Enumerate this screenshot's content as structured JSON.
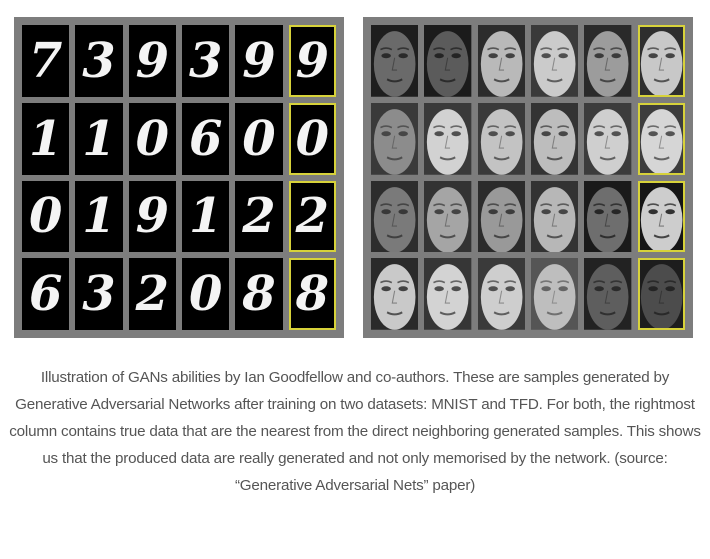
{
  "mnist_digits": [
    [
      "7",
      "3",
      "9",
      "3",
      "9",
      "9"
    ],
    [
      "1",
      "1",
      "0",
      "6",
      "0",
      "0"
    ],
    [
      "0",
      "1",
      "9",
      "1",
      "2",
      "2"
    ],
    [
      "6",
      "3",
      "2",
      "0",
      "8",
      "8"
    ]
  ],
  "tfd_faces": [
    [
      {
        "skin": "#6a6a6a",
        "dark": "#1e1e1e"
      },
      {
        "skin": "#5b5b5b",
        "dark": "#1b1b1b"
      },
      {
        "skin": "#b9b9b9",
        "dark": "#2c2c2c"
      },
      {
        "skin": "#cbcbcb",
        "dark": "#3a3a3a"
      },
      {
        "skin": "#9c9c9c",
        "dark": "#2a2a2a"
      },
      {
        "skin": "#c8c8c8",
        "dark": "#2e2e2e"
      }
    ],
    [
      {
        "skin": "#8c8c8c",
        "dark": "#3a3a3a"
      },
      {
        "skin": "#d2d2d2",
        "dark": "#3a3a3a"
      },
      {
        "skin": "#c3c3c3",
        "dark": "#3a3a3a"
      },
      {
        "skin": "#bdbdbd",
        "dark": "#333"
      },
      {
        "skin": "#cfcfcf",
        "dark": "#3c3c3c"
      },
      {
        "skin": "#d6d6d6",
        "dark": "#3d3d3d"
      }
    ],
    [
      {
        "skin": "#7a7a7a",
        "dark": "#2d2d2d"
      },
      {
        "skin": "#a5a5a5",
        "dark": "#333"
      },
      {
        "skin": "#999999",
        "dark": "#2b2b2b"
      },
      {
        "skin": "#b7b7b7",
        "dark": "#333"
      },
      {
        "skin": "#6e6e6e",
        "dark": "#1a1a1a"
      },
      {
        "skin": "#cdcdcd",
        "dark": "#151515"
      }
    ],
    [
      {
        "skin": "#c9c9c9",
        "dark": "#2a2a2a"
      },
      {
        "skin": "#d3d3d3",
        "dark": "#363636"
      },
      {
        "skin": "#cecece",
        "dark": "#3a3a3a"
      },
      {
        "skin": "#bebebe",
        "dark": "#555"
      },
      {
        "skin": "#5e5e5e",
        "dark": "#222"
      },
      {
        "skin": "#4c4c4c",
        "dark": "#1d1d1d"
      }
    ]
  ],
  "highlight_color": "#d7d23a",
  "caption": "Illustration of GANs abilities by Ian Goodfellow and co-authors. These are samples generated by Generative Adversarial Networks after training on two datasets: MNIST and TFD. For both, the rightmost column contains true data that are the nearest from the direct neighboring generated samples. This shows us that the produced data are really generated and not only memorised by the network. (source: “Generative Adversarial Nets” paper)"
}
